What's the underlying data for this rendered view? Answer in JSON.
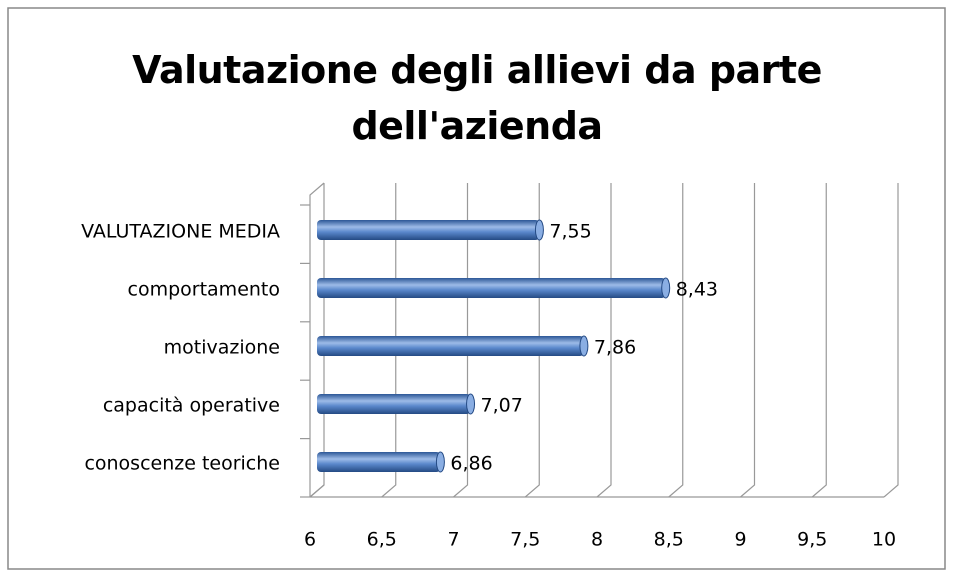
{
  "chart_data": {
    "type": "bar",
    "orientation": "horizontal",
    "title": "Valutazione degli allievi da parte dell'azienda",
    "categories": [
      "VALUTAZIONE MEDIA",
      "comportamento",
      "motivazione",
      "capacità operative",
      "conoscenze teoriche"
    ],
    "values": [
      7.55,
      8.43,
      7.86,
      7.07,
      6.86
    ],
    "value_labels": [
      "7,55",
      "8,43",
      "7,86",
      "7,07",
      "6,86"
    ],
    "color": "#4a7cc4",
    "xlim": [
      6,
      10
    ],
    "xticks": [
      6,
      {
        "value": 6.5,
        "label": "6,5"
      },
      7,
      {
        "value": 7.5,
        "label": "7,5"
      },
      8,
      {
        "value": 8.5,
        "label": "8,5"
      },
      9,
      {
        "value": 9.5,
        "label": "9,5"
      },
      10
    ],
    "grid": true
  }
}
